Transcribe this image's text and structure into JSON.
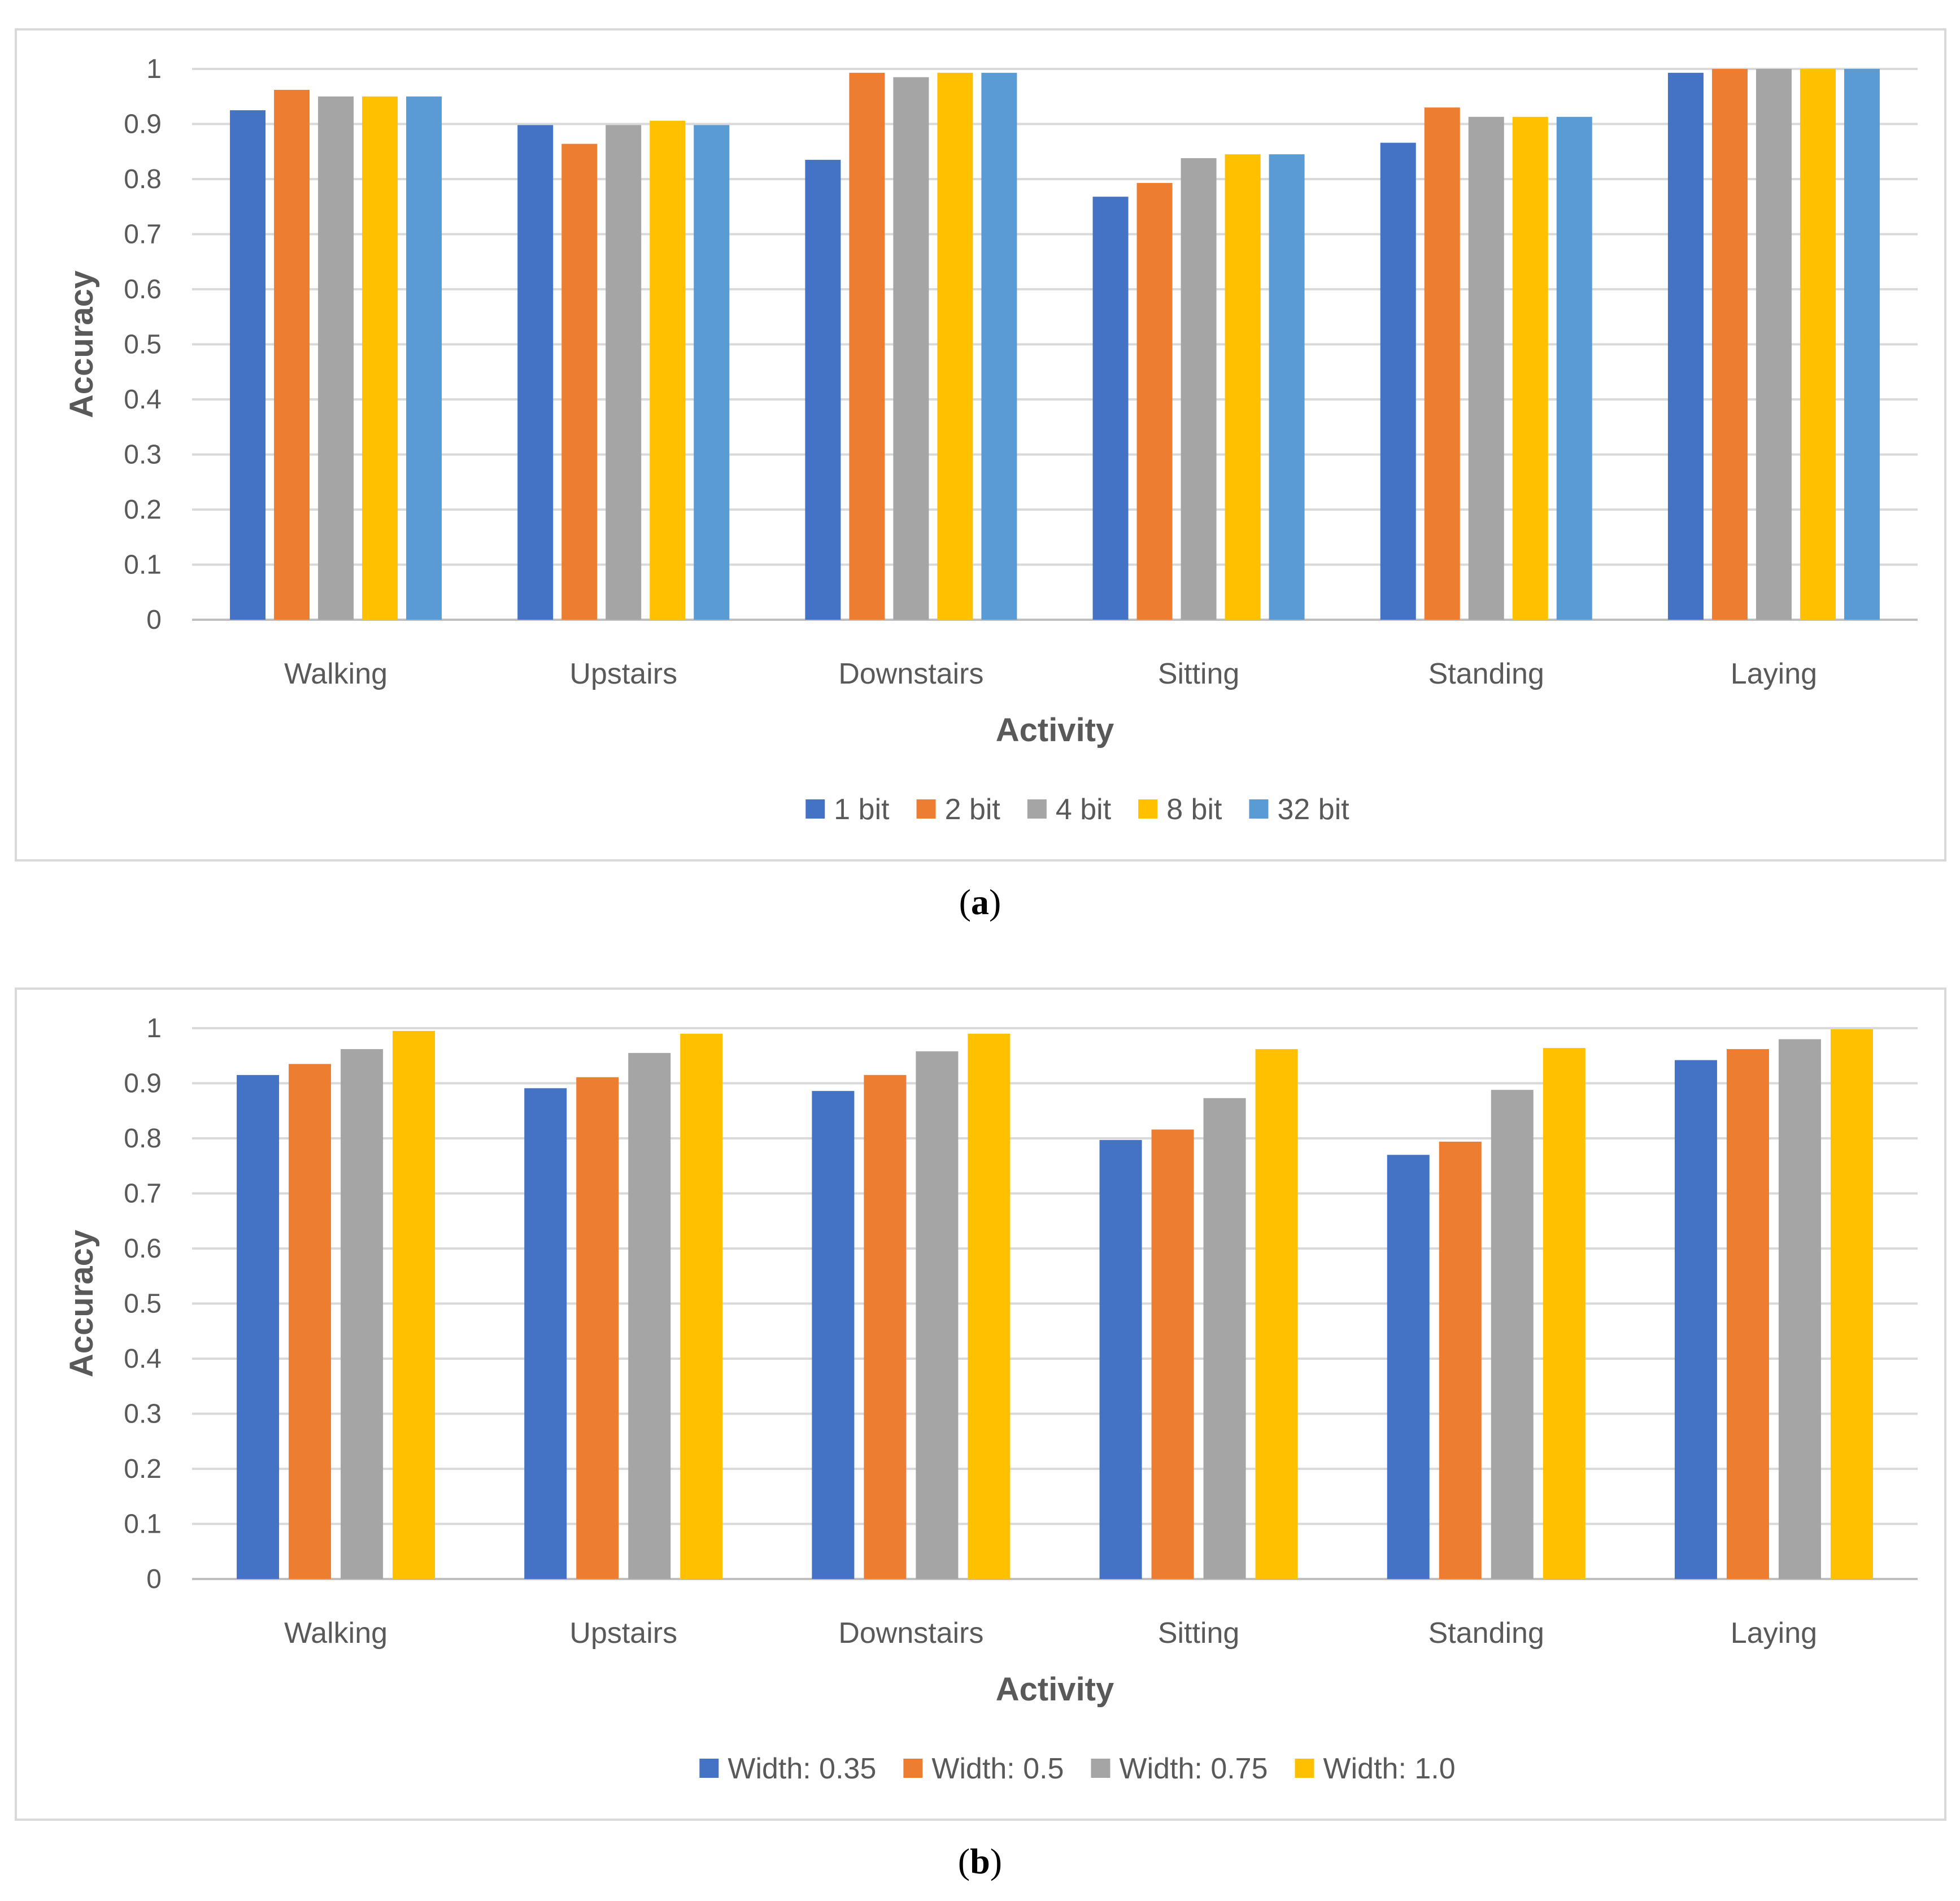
{
  "chart_data": [
    {
      "id": "a",
      "type": "bar",
      "title": "",
      "caption_letter": "a",
      "xlabel": "Activity",
      "ylabel": "Accuracy",
      "ylim": [
        0,
        1
      ],
      "yticks": [
        "0",
        "0.1",
        "0.2",
        "0.3",
        "0.4",
        "0.5",
        "0.6",
        "0.7",
        "0.8",
        "0.9",
        "1"
      ],
      "grid": true,
      "legend_position": "bottom",
      "categories": [
        "Walking",
        "Upstairs",
        "Downstairs",
        "Sitting",
        "Standing",
        "Laying"
      ],
      "series": [
        {
          "name": "1 bit",
          "color": "#4472C4",
          "values": [
            0.925,
            0.898,
            0.835,
            0.768,
            0.866,
            0.993
          ]
        },
        {
          "name": "2 bit",
          "color": "#ED7D31",
          "values": [
            0.962,
            0.864,
            0.993,
            0.793,
            0.93,
            1.0
          ]
        },
        {
          "name": "4 bit",
          "color": "#A5A5A5",
          "values": [
            0.95,
            0.898,
            0.985,
            0.838,
            0.913,
            1.0
          ]
        },
        {
          "name": "8 bit",
          "color": "#FFC000",
          "values": [
            0.95,
            0.906,
            0.993,
            0.845,
            0.913,
            1.0
          ]
        },
        {
          "name": "32 bit",
          "color": "#5B9BD5",
          "values": [
            0.95,
            0.898,
            0.993,
            0.845,
            0.913,
            1.0
          ]
        }
      ]
    },
    {
      "id": "b",
      "type": "bar",
      "title": "",
      "caption_letter": "b",
      "xlabel": "Activity",
      "ylabel": "Accuracy",
      "ylim": [
        0,
        1
      ],
      "yticks": [
        "0",
        "0.1",
        "0.2",
        "0.3",
        "0.4",
        "0.5",
        "0.6",
        "0.7",
        "0.8",
        "0.9",
        "1"
      ],
      "grid": true,
      "legend_position": "bottom",
      "categories": [
        "Walking",
        "Upstairs",
        "Downstairs",
        "Sitting",
        "Standing",
        "Laying"
      ],
      "series": [
        {
          "name": "Width: 0.35",
          "color": "#4472C4",
          "values": [
            0.915,
            0.891,
            0.886,
            0.797,
            0.77,
            0.942
          ]
        },
        {
          "name": "Width: 0.5",
          "color": "#ED7D31",
          "values": [
            0.935,
            0.911,
            0.915,
            0.816,
            0.794,
            0.962
          ]
        },
        {
          "name": "Width: 0.75",
          "color": "#A5A5A5",
          "values": [
            0.962,
            0.955,
            0.958,
            0.873,
            0.888,
            0.98
          ]
        },
        {
          "name": "Width: 1.0",
          "color": "#FFC000",
          "values": [
            0.995,
            0.99,
            0.99,
            0.962,
            0.964,
            0.998
          ]
        }
      ]
    }
  ]
}
